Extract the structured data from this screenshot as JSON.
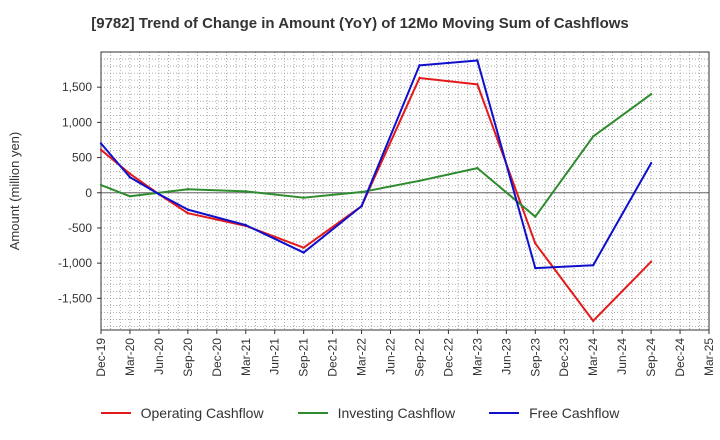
{
  "chart_data": {
    "type": "line",
    "title": "[9782]  Trend of Change in Amount (YoY) of 12Mo Moving Sum of Cashflows",
    "xlabel": "",
    "ylabel": "Amount (million yen)",
    "ylim": [
      -1950,
      2000
    ],
    "yticks": [
      -1500,
      -1000,
      -500,
      0,
      500,
      1000,
      1500
    ],
    "ytick_labels": [
      "-1,500",
      "-1,000",
      "-500",
      "0",
      "500",
      "1,000",
      "1,500"
    ],
    "categories": [
      "Dec-19",
      "Mar-20",
      "Jun-20",
      "Sep-20",
      "Dec-20",
      "Mar-21",
      "Jun-21",
      "Sep-21",
      "Dec-21",
      "Mar-22",
      "Jun-22",
      "Sep-22",
      "Dec-22",
      "Mar-23",
      "Jun-23",
      "Sep-23",
      "Dec-23",
      "Mar-24",
      "Jun-24",
      "Sep-24",
      "Dec-24",
      "Mar-25"
    ],
    "series": [
      {
        "name": "Operating Cashflow",
        "color": "#e31a1c",
        "values": [
          610,
          270,
          -20,
          -290,
          null,
          -470,
          null,
          -780,
          null,
          -190,
          null,
          1630,
          null,
          1540,
          null,
          -720,
          null,
          -1820,
          null,
          -980,
          null,
          null
        ]
      },
      {
        "name": "Investing Cashflow",
        "color": "#2e8b2e",
        "values": [
          110,
          -50,
          null,
          50,
          null,
          20,
          null,
          -70,
          null,
          10,
          null,
          170,
          null,
          350,
          null,
          -340,
          null,
          800,
          null,
          1400,
          null,
          null
        ]
      },
      {
        "name": "Free Cashflow",
        "color": "#1010cc",
        "values": [
          700,
          220,
          -20,
          -240,
          null,
          -460,
          null,
          -850,
          null,
          -190,
          null,
          1810,
          null,
          1880,
          null,
          -1070,
          null,
          -1030,
          null,
          420,
          null,
          null
        ]
      }
    ]
  }
}
